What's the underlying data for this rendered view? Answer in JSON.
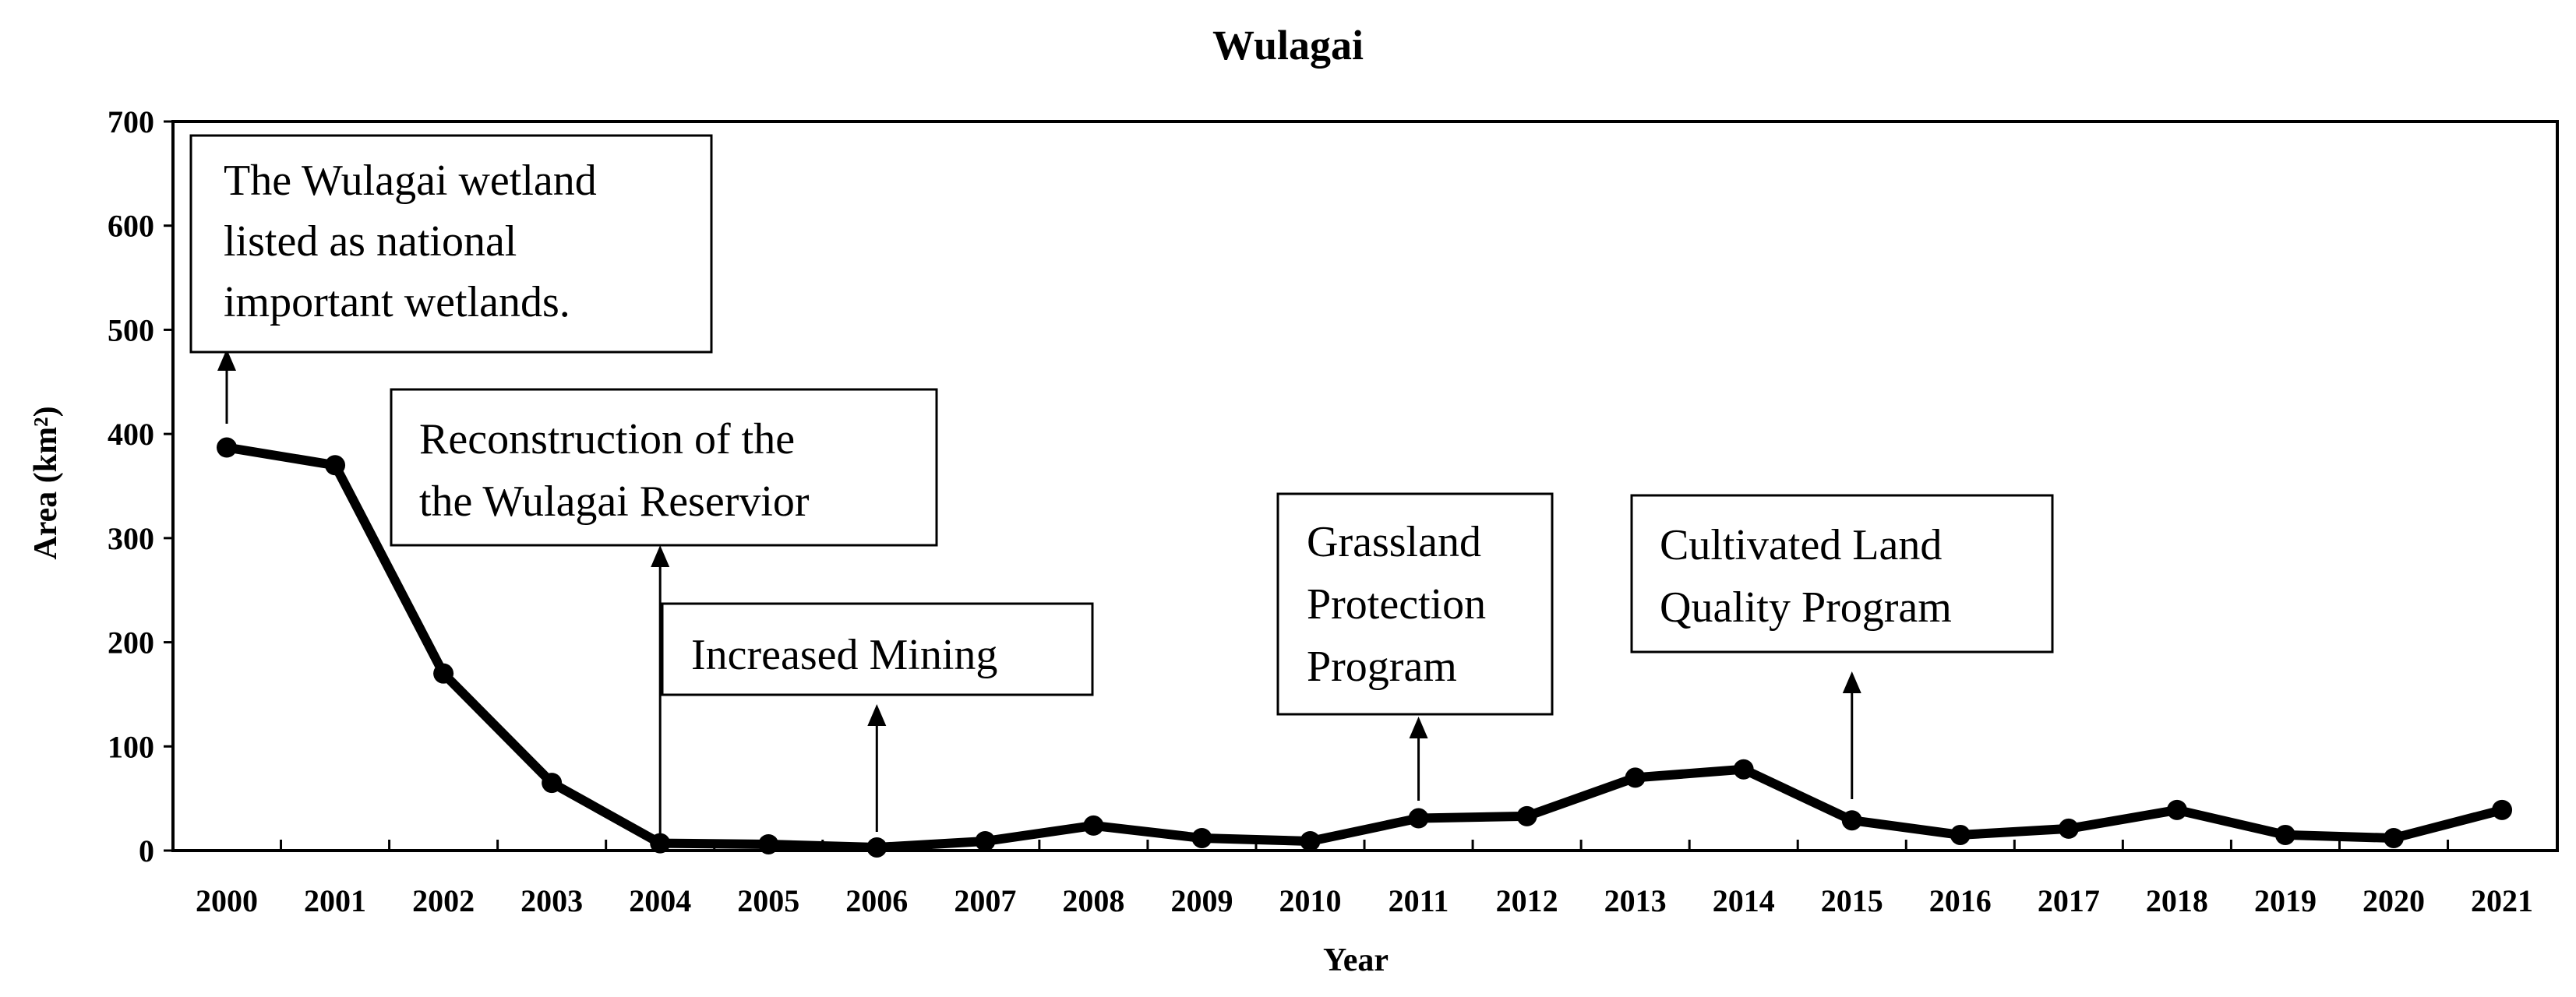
{
  "chart_data": {
    "type": "line",
    "title": "Wulagai",
    "xlabel": "Year",
    "ylabel": "Area (km²)",
    "ylim": [
      0,
      700
    ],
    "yticks": [
      "0",
      "100",
      "200",
      "300",
      "400",
      "500",
      "600",
      "700"
    ],
    "categories": [
      "2000",
      "2001",
      "2002",
      "2003",
      "2004",
      "2005",
      "2006",
      "2007",
      "2008",
      "2009",
      "2010",
      "2011",
      "2012",
      "2013",
      "2014",
      "2015",
      "2016",
      "2017",
      "2018",
      "2019",
      "2020",
      "2021"
    ],
    "series": [
      {
        "name": "Area",
        "values": [
          387,
          370,
          170,
          65,
          7,
          6,
          3,
          9,
          24,
          12,
          9,
          31,
          33,
          70,
          78,
          29,
          15,
          21,
          39,
          15,
          12,
          39
        ]
      }
    ],
    "grid": false,
    "annotations": [
      {
        "id": "wetland",
        "lines": [
          "The Wulagai wetland",
          "listed as national",
          "important wetlands."
        ],
        "year": "2000"
      },
      {
        "id": "reservoir",
        "lines": [
          "Reconstruction of the",
          "the Wulagai Reservior"
        ],
        "year": "2004"
      },
      {
        "id": "mining",
        "lines": [
          "Increased Mining"
        ],
        "year": "2006"
      },
      {
        "id": "grassland",
        "lines": [
          "Grassland",
          "Protection",
          "Program"
        ],
        "year": "2011"
      },
      {
        "id": "cultivated",
        "lines": [
          "Cultivated Land",
          "Quality Program"
        ],
        "year": "2015"
      }
    ]
  }
}
